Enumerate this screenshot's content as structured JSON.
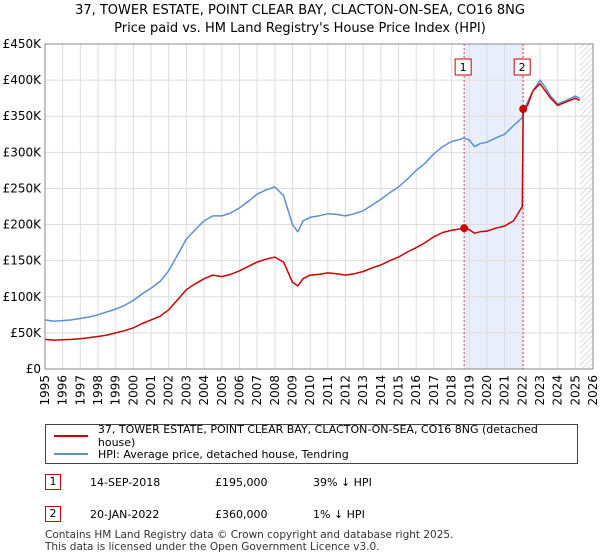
{
  "chart_data": {
    "type": "line",
    "title": "37, TOWER ESTATE, POINT CLEAR BAY, CLACTON-ON-SEA, CO16 8NG",
    "subtitle": "Price paid vs. HM Land Registry's House Price Index (HPI)",
    "xlabel": "",
    "ylabel": "",
    "xlim": [
      1995.0,
      2026.0
    ],
    "ylim": [
      0,
      450000
    ],
    "y_ticks": [
      0,
      50000,
      100000,
      150000,
      200000,
      250000,
      300000,
      350000,
      400000,
      450000
    ],
    "y_tick_labels": [
      "£0",
      "£50K",
      "£100K",
      "£150K",
      "£200K",
      "£250K",
      "£300K",
      "£350K",
      "£400K",
      "£450K"
    ],
    "x_ticks": [
      1995,
      1996,
      1997,
      1998,
      1999,
      2000,
      2001,
      2002,
      2003,
      2004,
      2005,
      2006,
      2007,
      2008,
      2009,
      2010,
      2011,
      2012,
      2013,
      2014,
      2015,
      2016,
      2017,
      2018,
      2019,
      2020,
      2021,
      2022,
      2023,
      2024,
      2025,
      2026
    ],
    "grid": true,
    "shaded_period": {
      "start": 2018.71,
      "end": 2022.05
    },
    "future_hatch_start": 2025.25,
    "series": [
      {
        "name": "37, TOWER ESTATE, POINT CLEAR BAY, CLACTON-ON-SEA, CO16 8NG (detached house)",
        "color": "#cc0000",
        "x": [
          1995.0,
          1995.5,
          1996.0,
          1996.5,
          1997.0,
          1997.5,
          1998.0,
          1998.5,
          1999.0,
          1999.5,
          2000.0,
          2000.5,
          2001.0,
          2001.5,
          2002.0,
          2002.5,
          2003.0,
          2003.5,
          2004.0,
          2004.5,
          2005.0,
          2005.5,
          2006.0,
          2006.5,
          2007.0,
          2007.5,
          2008.0,
          2008.5,
          2009.0,
          2009.3,
          2009.6,
          2010.0,
          2010.5,
          2011.0,
          2011.5,
          2012.0,
          2012.5,
          2013.0,
          2013.5,
          2014.0,
          2014.5,
          2015.0,
          2015.5,
          2016.0,
          2016.5,
          2017.0,
          2017.5,
          2018.0,
          2018.5,
          2018.71,
          2019.0,
          2019.3,
          2019.6,
          2020.0,
          2020.5,
          2021.0,
          2021.5,
          2022.0,
          2022.05,
          2022.3,
          2022.6,
          2023.0,
          2023.3,
          2023.6,
          2024.0,
          2024.5,
          2025.0,
          2025.25
        ],
        "values": [
          41000,
          40000,
          40500,
          41000,
          42000,
          43500,
          45000,
          47000,
          50000,
          53000,
          57000,
          63000,
          68000,
          73000,
          82000,
          96000,
          110000,
          118000,
          125000,
          130000,
          128000,
          131000,
          136000,
          142000,
          148000,
          152000,
          155000,
          148000,
          120000,
          115000,
          125000,
          130000,
          131000,
          133000,
          132000,
          130000,
          132000,
          135000,
          140000,
          144000,
          150000,
          155000,
          162000,
          168000,
          175000,
          183000,
          189000,
          192000,
          194000,
          195000,
          193000,
          188000,
          190000,
          191000,
          195000,
          198000,
          205000,
          225000,
          360000,
          365000,
          385000,
          395000,
          385000,
          375000,
          365000,
          370000,
          375000,
          372000
        ]
      },
      {
        "name": "HPI: Average price, detached house, Tendring",
        "color": "#5b8fd0",
        "x": [
          1995.0,
          1995.5,
          1996.0,
          1996.5,
          1997.0,
          1997.5,
          1998.0,
          1998.5,
          1999.0,
          1999.5,
          2000.0,
          2000.5,
          2001.0,
          2001.5,
          2002.0,
          2002.5,
          2003.0,
          2003.5,
          2004.0,
          2004.5,
          2005.0,
          2005.5,
          2006.0,
          2006.5,
          2007.0,
          2007.5,
          2008.0,
          2008.5,
          2009.0,
          2009.3,
          2009.6,
          2010.0,
          2010.5,
          2011.0,
          2011.5,
          2012.0,
          2012.5,
          2013.0,
          2013.5,
          2014.0,
          2014.5,
          2015.0,
          2015.5,
          2016.0,
          2016.5,
          2017.0,
          2017.5,
          2018.0,
          2018.5,
          2018.71,
          2019.0,
          2019.3,
          2019.6,
          2020.0,
          2020.5,
          2021.0,
          2021.5,
          2022.0,
          2022.05,
          2022.3,
          2022.6,
          2023.0,
          2023.3,
          2023.6,
          2024.0,
          2024.5,
          2025.0,
          2025.25
        ],
        "values": [
          68000,
          66000,
          67000,
          68000,
          70000,
          72000,
          75000,
          79000,
          83000,
          88000,
          95000,
          104000,
          112000,
          121000,
          136000,
          158000,
          180000,
          193000,
          205000,
          212000,
          212000,
          216000,
          223000,
          232000,
          242000,
          248000,
          252000,
          240000,
          200000,
          190000,
          205000,
          210000,
          212000,
          215000,
          214000,
          212000,
          215000,
          219000,
          227000,
          235000,
          244000,
          252000,
          263000,
          275000,
          285000,
          298000,
          308000,
          315000,
          318000,
          320000,
          317000,
          308000,
          312000,
          314000,
          320000,
          325000,
          337000,
          348000,
          357000,
          370000,
          385000,
          400000,
          390000,
          378000,
          367000,
          372000,
          378000,
          375000
        ]
      }
    ],
    "sales": [
      {
        "label": "1",
        "x": 2018.71,
        "value": 195000
      },
      {
        "label": "2",
        "x": 2022.05,
        "value": 360000
      }
    ]
  },
  "legend": {
    "property": "37, TOWER ESTATE, POINT CLEAR BAY, CLACTON-ON-SEA, CO16 8NG (detached house)",
    "hpi": "HPI: Average price, detached house, Tendring"
  },
  "sales_table": [
    {
      "num": "1",
      "date": "14-SEP-2018",
      "price": "£195,000",
      "hpi": "39% ↓ HPI"
    },
    {
      "num": "2",
      "date": "20-JAN-2022",
      "price": "£360,000",
      "hpi": "1% ↓ HPI"
    }
  ],
  "footer": {
    "line1": "Contains HM Land Registry data © Crown copyright and database right 2025.",
    "line2": "This data is licensed under the Open Government Licence v3.0."
  },
  "colors": {
    "property": "#cc0000",
    "hpi": "#5b8fd0",
    "shade": "#e8eefb"
  }
}
